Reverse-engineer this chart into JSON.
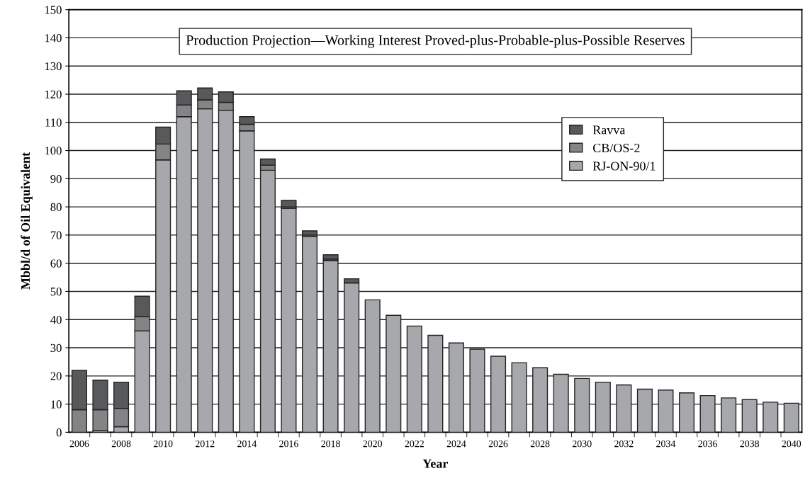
{
  "chart_data": {
    "type": "bar",
    "stacked": true,
    "title": "Production Projection—Working Interest Proved-plus-Probable-plus-Possible Reserves",
    "xlabel": "Year",
    "ylabel": "Mbbl/d of Oil Equivalent",
    "categories": [
      "2006",
      null,
      "2008",
      null,
      "2010",
      null,
      "2012",
      null,
      "2014",
      null,
      "2016",
      null,
      "2018",
      null,
      "2020",
      null,
      "2022",
      null,
      "2024",
      null,
      "2026",
      null,
      "2028",
      null,
      "2030",
      null,
      "2032",
      null,
      "2034",
      null,
      "2036",
      null,
      "2038",
      null,
      "2040"
    ],
    "series": [
      {
        "name": "RJ-ON-90/1",
        "color": "#a7a8ab",
        "values": [
          null,
          0.7,
          2,
          36,
          96.7,
          112,
          114.8,
          114.3,
          107,
          93,
          79.5,
          69.5,
          61,
          53,
          47,
          41.5,
          37.7,
          34.4,
          31.7,
          29.5,
          27,
          24.7,
          22.9,
          20.6,
          19.1,
          17.8,
          16.8,
          15.3,
          15,
          14,
          13,
          12.2,
          11.6,
          10.7,
          10.3
        ]
      },
      {
        "name": "CB/OS-2",
        "color": "#838486",
        "values": [
          8,
          7.3,
          6.5,
          5,
          5.6,
          4.2,
          3.2,
          2.8,
          2.3,
          1.8,
          0.5,
          0.5,
          0.5,
          null,
          null,
          null,
          null,
          null,
          null,
          null,
          null,
          null,
          null,
          null,
          null,
          null,
          null,
          null,
          null,
          null,
          null,
          null,
          null,
          null,
          null
        ]
      },
      {
        "name": "Ravva",
        "color": "#58595b",
        "values": [
          14,
          10.5,
          9.3,
          7.3,
          6,
          5,
          4.2,
          3.7,
          2.7,
          2.2,
          2.3,
          1.5,
          1.5,
          1.5,
          null,
          null,
          null,
          null,
          null,
          null,
          null,
          null,
          null,
          null,
          null,
          null,
          null,
          null,
          null,
          null,
          null,
          null,
          null,
          null,
          null
        ]
      }
    ],
    "ylim": [
      0,
      150
    ],
    "yticks": [
      0,
      10,
      20,
      30,
      40,
      50,
      60,
      70,
      80,
      90,
      100,
      110,
      120,
      130,
      140,
      150
    ],
    "grid": "y",
    "legend": "top right"
  }
}
